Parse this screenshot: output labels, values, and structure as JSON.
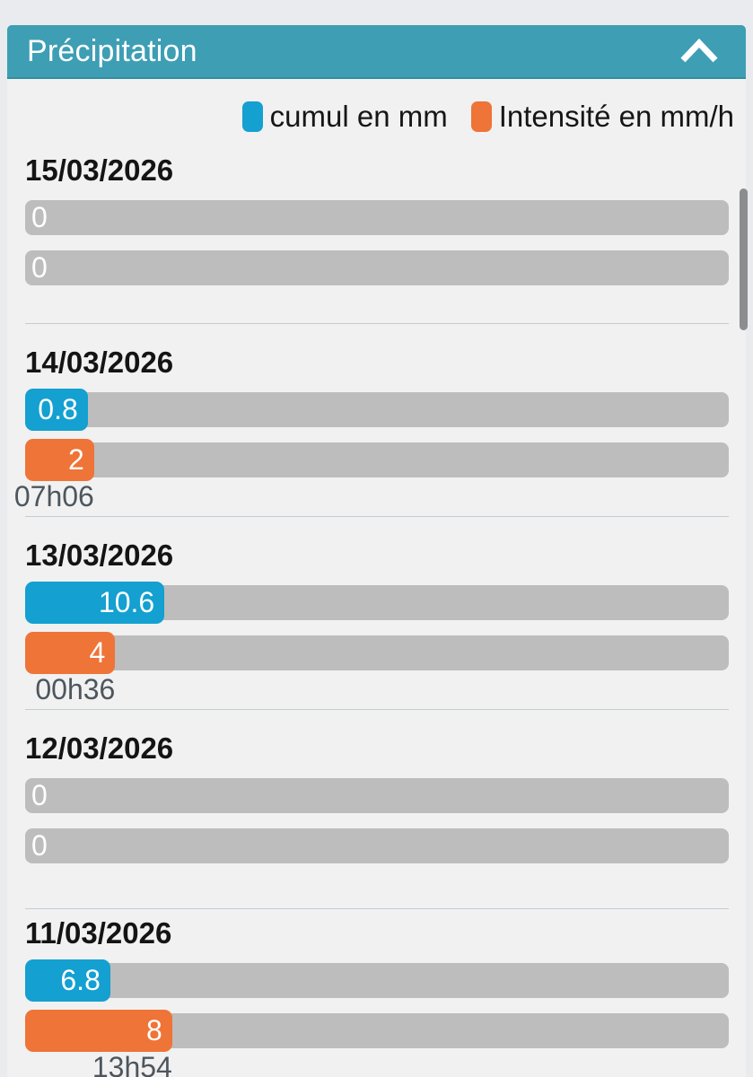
{
  "panel": {
    "title": "Précipitation",
    "collapse_icon": "chevron-up"
  },
  "legend": {
    "items": [
      {
        "label": "cumul en mm",
        "color": "#14a0d1"
      },
      {
        "label": "Intensité en mm/h",
        "color": "#ee7438"
      }
    ]
  },
  "days": [
    {
      "date": "15/03/2026",
      "cumul": {
        "value": "0",
        "fill_pct": 0
      },
      "intensite": {
        "value": "0",
        "fill_pct": 0
      },
      "peak_time": null
    },
    {
      "date": "14/03/2026",
      "cumul": {
        "value": "0.8",
        "fill_pct": 8.9
      },
      "intensite": {
        "value": "2",
        "fill_pct": 9.8
      },
      "peak_time": "07h06"
    },
    {
      "date": "13/03/2026",
      "cumul": {
        "value": "10.6",
        "fill_pct": 19.8
      },
      "intensite": {
        "value": "4",
        "fill_pct": 12.8
      },
      "peak_time": "00h36"
    },
    {
      "date": "12/03/2026",
      "cumul": {
        "value": "0",
        "fill_pct": 0
      },
      "intensite": {
        "value": "0",
        "fill_pct": 0
      },
      "peak_time": null
    },
    {
      "date": "11/03/2026",
      "cumul": {
        "value": "6.8",
        "fill_pct": 12.1
      },
      "intensite": {
        "value": "8",
        "fill_pct": 20.9
      },
      "peak_time": "13h54"
    }
  ],
  "chart_data": {
    "type": "bar",
    "orientation": "horizontal",
    "title": "Précipitation",
    "categories": [
      "15/03/2026",
      "14/03/2026",
      "13/03/2026",
      "12/03/2026",
      "11/03/2026"
    ],
    "series": [
      {
        "name": "cumul en mm",
        "color": "#14a0d1",
        "values": [
          0,
          0.8,
          10.6,
          0,
          6.8
        ]
      },
      {
        "name": "Intensité en mm/h",
        "color": "#ee7438",
        "values": [
          0,
          2,
          4,
          0,
          8
        ]
      }
    ],
    "peak_times": [
      null,
      "07h06",
      "00h36",
      null,
      "13h54"
    ],
    "legend_position": "top-right"
  },
  "colors": {
    "page_bg": "#e9ebee",
    "card_bg": "#f1f1f1",
    "header_bg": "#3e9eb4",
    "header_text": "#ffffff",
    "cumul": "#14a0d1",
    "intensite": "#ee7438",
    "track": "#bdbdbd",
    "date_text": "#141414",
    "value_text": "#ffffff",
    "time_text": "#4d565e",
    "divider": "#c3ccd3",
    "scrollbar": "#8b8d8f"
  }
}
